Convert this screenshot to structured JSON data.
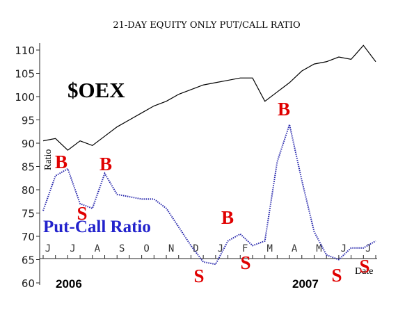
{
  "chart_data": {
    "type": "line",
    "title": "21-DAY EQUITY ONLY PUT/CALL RATIO",
    "y_label": "Ratio",
    "x_label": "Date",
    "year_labels": [
      "2006",
      "2007"
    ],
    "categories": [
      "J",
      null,
      "J",
      null,
      "A",
      null,
      "S",
      null,
      "O",
      null,
      "N",
      null,
      "D",
      null,
      "J",
      null,
      "F",
      null,
      "M",
      null,
      "A",
      null,
      "M",
      null,
      "J",
      null,
      "J",
      null
    ],
    "series": [
      {
        "name": "$OEX",
        "color": "#000000",
        "values": [
          90.5,
          91,
          88.5,
          90.5,
          89.5,
          91.5,
          93.5,
          95,
          96.5,
          98,
          99,
          100.5,
          101.5,
          102.5,
          103,
          103.5,
          104,
          104,
          99,
          101,
          103,
          105.5,
          107,
          107.5,
          108.5,
          108,
          111,
          107.5
        ]
      },
      {
        "name": "Put-Call Ratio",
        "color": "#2222aa",
        "values": [
          75.5,
          83,
          84.5,
          77,
          76,
          83.5,
          79,
          78.5,
          78,
          78,
          76,
          72,
          68,
          64.5,
          64,
          69,
          70.5,
          68,
          69,
          86,
          94,
          82,
          71,
          66,
          65,
          67.5,
          67.5,
          69
        ]
      }
    ],
    "annotations": [
      "B",
      "S",
      "B",
      "S",
      "B",
      "S",
      "B",
      "S",
      "S"
    ],
    "ylim": [
      60,
      110
    ],
    "yticks": [
      60,
      65,
      70,
      75,
      80,
      85,
      90,
      95,
      100,
      105,
      110
    ]
  }
}
